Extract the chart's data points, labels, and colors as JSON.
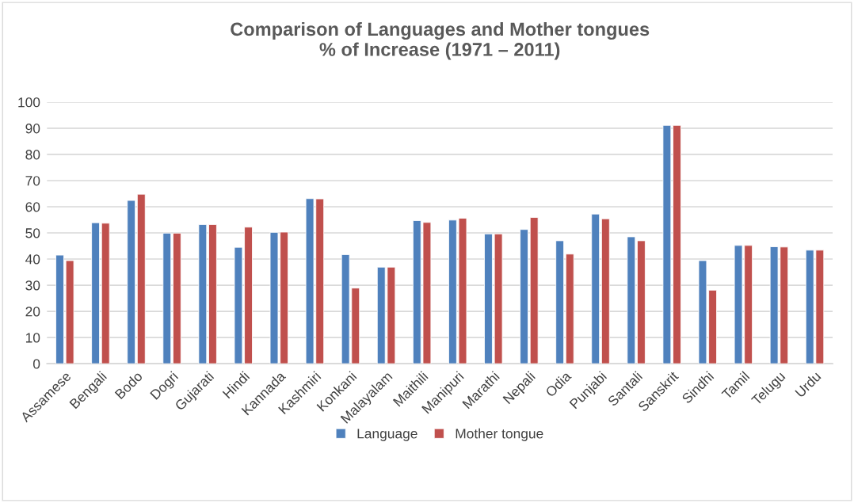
{
  "chart_data": {
    "type": "bar",
    "title": "Comparison of Languages and Mother tongues\n% of Increase (1971 – 2011)",
    "categories": [
      "Assamese",
      "Bengali",
      "Bodo",
      "Dogri",
      "Gujarati",
      "Hindi",
      "Kannada",
      "Kashmiri",
      "Konkani",
      "Malayalam",
      "Maithili",
      "Manipuri",
      "Marathi",
      "Nepali",
      "Odia",
      "Punjabi",
      "Santali",
      "Sanskrit",
      "Sindhi",
      "Tamil",
      "Telugu",
      "Urdu"
    ],
    "series": [
      {
        "name": "Language",
        "color": "#4f81bd",
        "values": [
          41.5,
          53.9,
          62.4,
          49.9,
          53.2,
          44.5,
          50.2,
          63.1,
          41.7,
          36.9,
          54.7,
          54.9,
          49.6,
          51.3,
          47.0,
          57.2,
          48.5,
          91.1,
          39.4,
          45.2,
          44.7,
          43.4
        ]
      },
      {
        "name": "Mother tongue",
        "color": "#c0504d",
        "values": [
          39.4,
          53.7,
          64.8,
          49.9,
          53.2,
          52.2,
          50.3,
          63.0,
          28.9,
          36.9,
          54.0,
          55.6,
          49.6,
          55.9,
          41.9,
          55.4,
          47.0,
          91.1,
          28.1,
          45.2,
          44.6,
          43.4
        ]
      }
    ],
    "ylim": [
      0,
      100
    ],
    "yticks": [
      0,
      10,
      20,
      30,
      40,
      50,
      60,
      70,
      80,
      90,
      100
    ],
    "grid": "y",
    "legend": "bottom"
  }
}
